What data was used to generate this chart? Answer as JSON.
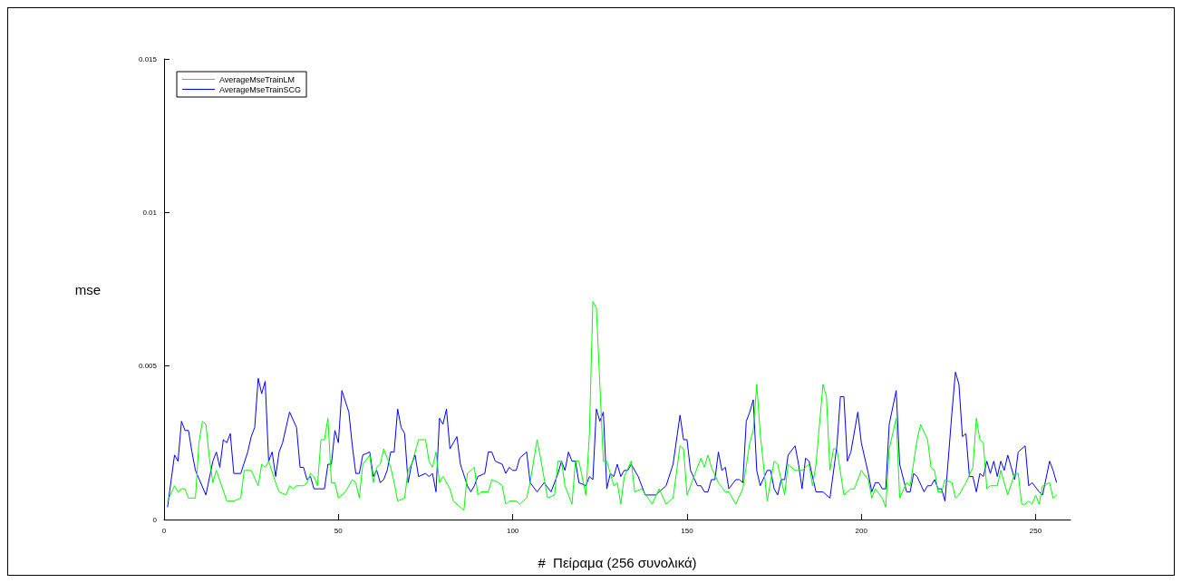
{
  "chart_data": {
    "type": "line",
    "xlabel": "#  Πείραμα (256 συνολικά)",
    "ylabel": "mse",
    "xlim": [
      0,
      260
    ],
    "xticks": [
      0,
      50,
      100,
      150,
      200,
      250
    ],
    "ylim": [
      0,
      0.015
    ],
    "yticks": [
      0,
      0.005,
      0.01,
      0.015
    ],
    "legend": "top left",
    "grid": false,
    "marker": "none",
    "line_style": "solid",
    "series": [
      {
        "name": "AverageMseTrainLM",
        "color": "#00ff00",
        "x": [
          1,
          3,
          4,
          5,
          6,
          7,
          9,
          10,
          11,
          12,
          13,
          14,
          15,
          18,
          20,
          22,
          23,
          25,
          27,
          28,
          29,
          30,
          32,
          33,
          35,
          36,
          37,
          38,
          40,
          41,
          42,
          43,
          44,
          45,
          46,
          47,
          48,
          49,
          50,
          52,
          54,
          55,
          56,
          57,
          59,
          60,
          61,
          62,
          63,
          65,
          66,
          67,
          69,
          70,
          71,
          73,
          75,
          76,
          77,
          78,
          79,
          80,
          82,
          83,
          86,
          87,
          89,
          90,
          91,
          93,
          94,
          96,
          97,
          98,
          99,
          101,
          102,
          104,
          105,
          107,
          108,
          110,
          112,
          113,
          114,
          115,
          117,
          118,
          119,
          121,
          122,
          123,
          124,
          125,
          126,
          127,
          129,
          130,
          131,
          132,
          134,
          135,
          137,
          140,
          142,
          144,
          146,
          148,
          149,
          150,
          151,
          154,
          155,
          156,
          157,
          159,
          161,
          162,
          164,
          166,
          168,
          169,
          170,
          171,
          173,
          175,
          176,
          178,
          179,
          181,
          183,
          185,
          186,
          187,
          189,
          190,
          191,
          192,
          193,
          195,
          197,
          198,
          200,
          202,
          203,
          204,
          206,
          207,
          208,
          210,
          211,
          213,
          214,
          216,
          217,
          219,
          220,
          221,
          222,
          223,
          224,
          226,
          227,
          228,
          230,
          232,
          233,
          234,
          235,
          236,
          237,
          239,
          240,
          242,
          244,
          245,
          246,
          247,
          248,
          249,
          250,
          251,
          252,
          254,
          255,
          256
        ],
        "values": [
          0.0006,
          0.0011,
          0.0009,
          0.001,
          0.001,
          0.0007,
          0.0007,
          0.0025,
          0.0032,
          0.0031,
          0.002,
          0.0012,
          0.0016,
          0.0006,
          0.0006,
          0.0007,
          0.0016,
          0.0016,
          0.0011,
          0.0018,
          0.0017,
          0.0019,
          0.0012,
          0.0009,
          0.0008,
          0.0011,
          0.001,
          0.0011,
          0.0011,
          0.0012,
          0.0015,
          0.0014,
          0.0011,
          0.0026,
          0.0026,
          0.0033,
          0.0012,
          0.0012,
          0.0007,
          0.0009,
          0.0013,
          0.0012,
          0.0007,
          0.0018,
          0.0021,
          0.0012,
          0.0017,
          0.0018,
          0.0023,
          0.0017,
          0.0012,
          0.0006,
          0.0007,
          0.0016,
          0.0018,
          0.0026,
          0.0026,
          0.0019,
          0.0017,
          0.0022,
          0.0012,
          0.0014,
          0.001,
          0.0006,
          0.0003,
          0.0015,
          0.0017,
          0.0008,
          0.0009,
          0.0009,
          0.0013,
          0.0012,
          0.0011,
          0.0005,
          0.0006,
          0.0006,
          0.0005,
          0.0007,
          0.0012,
          0.0026,
          0.002,
          0.0007,
          0.0008,
          0.0019,
          0.0019,
          0.0011,
          0.0005,
          0.0019,
          0.0019,
          0.0008,
          0.0028,
          0.0071,
          0.0069,
          0.0044,
          0.0019,
          0.0019,
          0.0011,
          0.0012,
          0.0005,
          0.0014,
          0.0019,
          0.0009,
          0.001,
          0.0005,
          0.001,
          0.0005,
          0.0007,
          0.0024,
          0.0023,
          0.0008,
          0.0011,
          0.002,
          0.0017,
          0.0021,
          0.0017,
          0.0012,
          0.0009,
          0.0009,
          0.0005,
          0.001,
          0.0025,
          0.0029,
          0.0044,
          0.0028,
          0.0006,
          0.0019,
          0.0018,
          0.0008,
          0.0018,
          0.0016,
          0.0016,
          0.0018,
          0.0011,
          0.0018,
          0.0044,
          0.004,
          0.0016,
          0.0023,
          0.0023,
          0.0008,
          0.001,
          0.001,
          0.0016,
          0.0013,
          0.0007,
          0.001,
          0.0007,
          0.0004,
          0.0023,
          0.0033,
          0.0007,
          0.0012,
          0.0011,
          0.0026,
          0.0031,
          0.0026,
          0.0017,
          0.0016,
          0.0009,
          0.0009,
          0.0013,
          0.0012,
          0.0007,
          0.0008,
          0.0012,
          0.0017,
          0.0033,
          0.0026,
          0.0025,
          0.001,
          0.0011,
          0.0011,
          0.0016,
          0.0008,
          0.0015,
          0.0015,
          0.0005,
          0.0005,
          0.0006,
          0.0005,
          0.0008,
          0.0005,
          0.0011,
          0.0012,
          0.0007,
          0.0008
        ]
      },
      {
        "name": "AverageMseTrainSCG",
        "color": "#0000ff",
        "x": [
          1,
          3,
          4,
          5,
          6,
          7,
          8,
          9,
          12,
          14,
          15,
          16,
          17,
          18,
          19,
          20,
          22,
          24,
          25,
          26,
          27,
          28,
          29,
          30,
          31,
          32,
          33,
          34,
          36,
          38,
          39,
          40,
          41,
          42,
          43,
          46,
          47,
          48,
          49,
          50,
          51,
          53,
          54,
          55,
          56,
          57,
          59,
          60,
          61,
          62,
          63,
          64,
          65,
          66,
          67,
          68,
          69,
          70,
          71,
          72,
          73,
          75,
          76,
          77,
          78,
          79,
          80,
          81,
          82,
          84,
          85,
          87,
          88,
          89,
          90,
          92,
          93,
          94,
          95,
          97,
          98,
          99,
          100,
          101,
          102,
          104,
          105,
          107,
          109,
          111,
          113,
          114,
          115,
          116,
          117,
          118,
          119,
          121,
          122,
          123,
          124,
          125,
          126,
          127,
          128,
          129,
          130,
          131,
          132,
          133,
          134,
          136,
          138,
          141,
          143,
          144,
          146,
          148,
          149,
          150,
          151,
          153,
          154,
          155,
          156,
          157,
          158,
          159,
          160,
          161,
          162,
          164,
          165,
          166,
          167,
          168,
          169,
          170,
          171,
          173,
          174,
          175,
          176,
          177,
          178,
          179,
          181,
          182,
          183,
          184,
          185,
          187,
          189,
          191,
          193,
          194,
          195,
          196,
          197,
          199,
          200,
          202,
          203,
          204,
          205,
          206,
          207,
          208,
          210,
          211,
          213,
          214,
          215,
          216,
          218,
          219,
          220,
          221,
          222,
          223,
          224,
          226,
          227,
          228,
          229,
          230,
          231,
          232,
          233,
          234,
          235,
          236,
          237,
          238,
          239,
          240,
          241,
          242,
          244,
          245,
          247,
          248,
          249,
          251,
          252,
          254,
          255,
          256
        ],
        "values": [
          0.0004,
          0.0021,
          0.0019,
          0.0032,
          0.0029,
          0.0029,
          0.0022,
          0.0016,
          0.0008,
          0.0019,
          0.0022,
          0.0017,
          0.0026,
          0.0025,
          0.0028,
          0.0015,
          0.0015,
          0.0022,
          0.0027,
          0.003,
          0.0046,
          0.0041,
          0.0045,
          0.0019,
          0.0022,
          0.0014,
          0.0022,
          0.0025,
          0.0035,
          0.003,
          0.0017,
          0.0017,
          0.0013,
          0.0014,
          0.001,
          0.001,
          0.0018,
          0.0018,
          0.0029,
          0.0025,
          0.0042,
          0.0035,
          0.0024,
          0.0015,
          0.0015,
          0.0021,
          0.0022,
          0.0014,
          0.0016,
          0.0012,
          0.0013,
          0.0016,
          0.0022,
          0.0022,
          0.0036,
          0.003,
          0.0028,
          0.0012,
          0.0018,
          0.0021,
          0.0014,
          0.0015,
          0.0014,
          0.0015,
          0.0009,
          0.0033,
          0.0031,
          0.0036,
          0.0023,
          0.0027,
          0.0018,
          0.0011,
          0.0009,
          0.0011,
          0.0014,
          0.0015,
          0.0022,
          0.0022,
          0.0019,
          0.0018,
          0.0015,
          0.0017,
          0.0016,
          0.0016,
          0.002,
          0.0022,
          0.0012,
          0.0009,
          0.0012,
          0.0009,
          0.0015,
          0.0019,
          0.0016,
          0.0022,
          0.0019,
          0.0019,
          0.0012,
          0.0011,
          0.0014,
          0.0013,
          0.0036,
          0.0032,
          0.0035,
          0.001,
          0.0015,
          0.0014,
          0.0018,
          0.0014,
          0.0016,
          0.0016,
          0.0018,
          0.0014,
          0.0008,
          0.0008,
          0.001,
          0.0011,
          0.0018,
          0.0034,
          0.0026,
          0.0026,
          0.0016,
          0.0011,
          0.0011,
          0.0009,
          0.0009,
          0.0013,
          0.0013,
          0.0022,
          0.0016,
          0.0017,
          0.001,
          0.0013,
          0.0013,
          0.0012,
          0.0032,
          0.0035,
          0.0039,
          0.0016,
          0.0011,
          0.0016,
          0.0016,
          0.001,
          0.0008,
          0.0013,
          0.0013,
          0.0021,
          0.0024,
          0.0018,
          0.001,
          0.002,
          0.0019,
          0.0009,
          0.0009,
          0.0007,
          0.0024,
          0.004,
          0.004,
          0.0019,
          0.0022,
          0.0035,
          0.0025,
          0.0015,
          0.0009,
          0.0012,
          0.0012,
          0.001,
          0.001,
          0.0031,
          0.0042,
          0.0018,
          0.0009,
          0.0009,
          0.0015,
          0.0014,
          0.0009,
          0.0011,
          0.0011,
          0.0013,
          0.001,
          0.001,
          0.0006,
          0.0035,
          0.0048,
          0.0044,
          0.0027,
          0.0028,
          0.0014,
          0.0014,
          0.0009,
          0.0015,
          0.0014,
          0.0019,
          0.0015,
          0.0019,
          0.0014,
          0.0019,
          0.0016,
          0.0021,
          0.0013,
          0.0022,
          0.0024,
          0.0011,
          0.0012,
          0.0009,
          0.0008,
          0.0019,
          0.0016,
          0.0012
        ]
      }
    ]
  }
}
